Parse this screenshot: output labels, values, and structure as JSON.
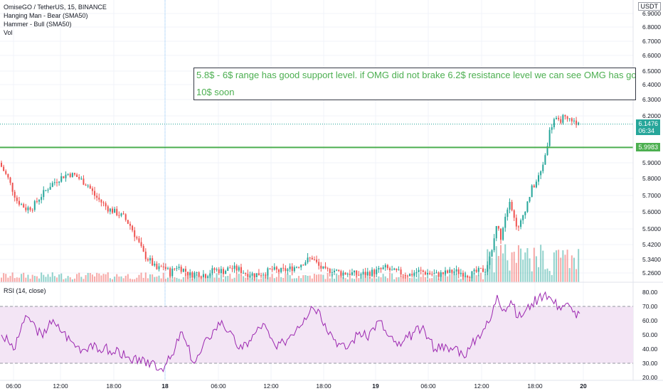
{
  "header": {
    "title": "OmiseGO / TetherUS, 15, BINANCE",
    "indicators": [
      "Hanging Man - Bear (SMA50)",
      "Hammer - Bull (SMA50)",
      "Vol"
    ],
    "currency": "USDT"
  },
  "annotation": {
    "line1": "5.8$ - 6$ range has good support level. if OMG did not brake  6.2$ resistance  level  we can see OMG has go",
    "line2": "10$ soon"
  },
  "price_labels": {
    "last_price": "6.1476",
    "countdown": "06:34",
    "support_price": "5.9983"
  },
  "rsi": {
    "label": "RSI (14, close)"
  },
  "colors": {
    "up": "#26a69a",
    "down": "#ef5350",
    "support_line": "#4caf50",
    "rsi_line": "#9c27b0",
    "rsi_band": "#f3e5f5",
    "annotation_text": "#4caf50"
  },
  "chart_data": [
    {
      "type": "candlestick",
      "title": "OmiseGO / TetherUS, 15, BINANCE",
      "x_ticks": [
        "06:00",
        "12:00",
        "18:00",
        "18",
        "06:00",
        "12:00",
        "18:00",
        "19",
        "06:00",
        "12:00",
        "18:00",
        "20"
      ],
      "y_ticks": [
        "6.9000",
        "6.8000",
        "6.7000",
        "6.6000",
        "6.5000",
        "6.4000",
        "6.3000",
        "6.2000",
        "5.9000",
        "5.8000",
        "5.7000",
        "5.6000",
        "5.5000",
        "5.4200",
        "5.3400",
        "5.2600"
      ],
      "ylim": [
        5.22,
        6.95
      ],
      "support_level": 5.9983,
      "last_price": 6.1476,
      "price_path": [
        [
          0,
          5.9
        ],
        [
          4,
          5.8
        ],
        [
          8,
          5.67
        ],
        [
          12,
          5.62
        ],
        [
          15,
          5.63
        ],
        [
          19,
          5.7
        ],
        [
          23,
          5.76
        ],
        [
          27,
          5.8
        ],
        [
          31,
          5.83
        ],
        [
          34,
          5.82
        ],
        [
          37,
          5.79
        ],
        [
          40,
          5.76
        ],
        [
          43,
          5.7
        ],
        [
          46,
          5.66
        ],
        [
          49,
          5.62
        ],
        [
          52,
          5.6
        ],
        [
          56,
          5.57
        ],
        [
          59,
          5.52
        ],
        [
          62,
          5.45
        ],
        [
          65,
          5.37
        ],
        [
          68,
          5.33
        ],
        [
          71,
          5.28
        ],
        [
          74,
          5.3
        ],
        [
          77,
          5.26
        ],
        [
          80,
          5.3
        ],
        [
          83,
          5.28
        ],
        [
          86,
          5.25
        ],
        [
          89,
          5.26
        ],
        [
          93,
          5.25
        ],
        [
          97,
          5.28
        ],
        [
          101,
          5.27
        ],
        [
          104,
          5.29
        ],
        [
          108,
          5.28
        ],
        [
          111,
          5.26
        ],
        [
          115,
          5.25
        ],
        [
          119,
          5.26
        ],
        [
          123,
          5.28
        ],
        [
          126,
          5.27
        ],
        [
          130,
          5.28
        ],
        [
          134,
          5.3
        ],
        [
          138,
          5.33
        ],
        [
          141,
          5.35
        ],
        [
          144,
          5.3
        ],
        [
          147,
          5.27
        ],
        [
          150,
          5.28
        ],
        [
          154,
          5.26
        ],
        [
          158,
          5.26
        ],
        [
          162,
          5.25
        ],
        [
          166,
          5.26
        ],
        [
          170,
          5.27
        ],
        [
          174,
          5.29
        ],
        [
          177,
          5.27
        ],
        [
          181,
          5.26
        ],
        [
          185,
          5.25
        ],
        [
          189,
          5.27
        ],
        [
          193,
          5.26
        ],
        [
          197,
          5.25
        ],
        [
          201,
          5.26
        ],
        [
          205,
          5.27
        ],
        [
          209,
          5.26
        ],
        [
          212,
          5.25
        ],
        [
          216,
          5.27
        ],
        [
          219,
          5.28
        ],
        [
          222,
          5.38
        ],
        [
          224,
          5.52
        ],
        [
          226,
          5.46
        ],
        [
          228,
          5.58
        ],
        [
          230,
          5.68
        ],
        [
          232,
          5.56
        ],
        [
          234,
          5.5
        ],
        [
          236,
          5.58
        ],
        [
          238,
          5.66
        ],
        [
          240,
          5.74
        ],
        [
          242,
          5.78
        ],
        [
          244,
          5.84
        ],
        [
          246,
          5.95
        ],
        [
          248,
          6.1
        ],
        [
          250,
          6.18
        ],
        [
          252,
          6.16
        ],
        [
          254,
          6.19
        ],
        [
          256,
          6.17
        ],
        [
          258,
          6.18
        ],
        [
          260,
          6.14
        ],
        [
          261,
          6.15
        ]
      ]
    },
    {
      "type": "line",
      "title": "RSI (14, close)",
      "y_ticks": [
        "80.00",
        "70.00",
        "60.00",
        "50.00",
        "40.00",
        "30.00",
        "20.00"
      ],
      "ylim": [
        20,
        85
      ],
      "band": [
        30,
        70
      ],
      "series": [
        {
          "values": [
            50,
            45,
            40,
            58,
            62,
            55,
            48,
            60,
            56,
            52,
            46,
            42,
            40,
            44,
            38,
            42,
            36,
            40,
            34,
            30,
            34,
            28,
            32,
            26,
            30,
            36,
            52,
            42,
            30,
            38,
            48,
            54,
            60,
            52,
            44,
            40,
            46,
            52,
            58,
            48,
            40,
            45,
            50,
            56,
            62,
            70,
            68,
            58,
            50,
            44,
            40,
            46,
            52,
            48,
            55,
            60,
            50,
            45,
            42,
            48,
            52,
            54,
            48,
            40,
            44,
            38,
            42,
            36,
            40,
            48,
            54,
            60,
            78,
            68,
            74,
            62,
            66,
            72,
            76,
            80,
            74,
            70,
            72,
            66,
            65
          ]
        }
      ]
    }
  ]
}
